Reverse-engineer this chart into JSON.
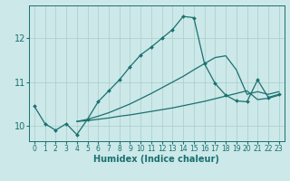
{
  "xlabel": "Humidex (Indice chaleur)",
  "bg_color": "#cce8e8",
  "grid_color": "#aacccc",
  "line_color": "#1a7070",
  "xlim": [
    -0.5,
    23.5
  ],
  "ylim": [
    9.65,
    12.75
  ],
  "yticks": [
    10,
    11,
    12
  ],
  "xticks": [
    0,
    1,
    2,
    3,
    4,
    5,
    6,
    7,
    8,
    9,
    10,
    11,
    12,
    13,
    14,
    15,
    16,
    17,
    18,
    19,
    20,
    21,
    22,
    23
  ],
  "series1_x": [
    0,
    1,
    2,
    3,
    4,
    5,
    6,
    7,
    8,
    9,
    10,
    11,
    12,
    13,
    14,
    15,
    16,
    17,
    18,
    19,
    20,
    21,
    22,
    23
  ],
  "series1_y": [
    10.45,
    10.05,
    9.9,
    10.05,
    9.8,
    10.15,
    10.55,
    10.8,
    11.05,
    11.35,
    11.62,
    11.8,
    12.0,
    12.2,
    12.5,
    12.47,
    11.42,
    10.97,
    10.7,
    10.57,
    10.55,
    11.05,
    10.65,
    10.72
  ],
  "series2_x": [
    4,
    5,
    6,
    7,
    8,
    9,
    10,
    11,
    12,
    13,
    14,
    15,
    16,
    17,
    18,
    19,
    20,
    21,
    22,
    23
  ],
  "series2_y": [
    10.1,
    10.12,
    10.15,
    10.18,
    10.22,
    10.25,
    10.29,
    10.33,
    10.37,
    10.41,
    10.46,
    10.51,
    10.56,
    10.62,
    10.68,
    10.74,
    10.8,
    10.6,
    10.63,
    10.7
  ],
  "series3_x": [
    4,
    5,
    6,
    7,
    8,
    9,
    10,
    11,
    12,
    13,
    14,
    15,
    16,
    17,
    18,
    19,
    20,
    21,
    22,
    23
  ],
  "series3_y": [
    10.1,
    10.15,
    10.22,
    10.3,
    10.4,
    10.5,
    10.62,
    10.74,
    10.87,
    11.0,
    11.13,
    11.28,
    11.42,
    11.56,
    11.6,
    11.28,
    10.72,
    10.78,
    10.72,
    10.78
  ]
}
